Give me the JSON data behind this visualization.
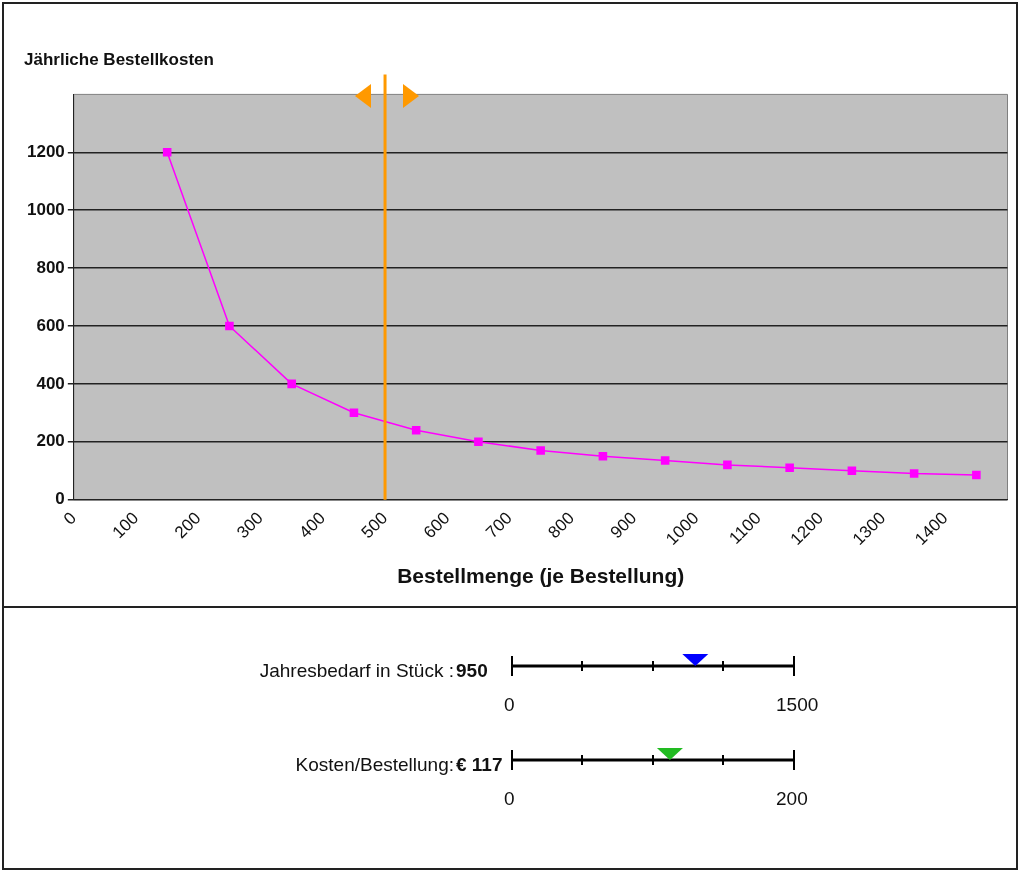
{
  "chart_data": {
    "type": "line",
    "title": "Jährliche Bestellkosten",
    "xlabel": "Bestellmenge (je Bestellung)",
    "x": [
      150,
      250,
      350,
      450,
      550,
      650,
      750,
      850,
      950,
      1050,
      1150,
      1250,
      1350,
      1450
    ],
    "series": [
      {
        "color": "#ff00ff",
        "values": [
          1200,
          600,
          400,
          300,
          240,
          200,
          170,
          150,
          135,
          120,
          110,
          100,
          90,
          85
        ]
      }
    ],
    "xlim": [
      0,
      1500
    ],
    "xticks": [
      0,
      100,
      200,
      300,
      400,
      500,
      600,
      700,
      800,
      900,
      1000,
      1100,
      1200,
      1300,
      1400
    ],
    "ylim": [
      0,
      1400
    ],
    "yticks": [
      0,
      200,
      400,
      600,
      800,
      1000,
      1200
    ],
    "grid": "y",
    "marker": "square",
    "line_style": "solid",
    "legend": false,
    "ref_lines": [
      {
        "axis": "x",
        "value": 500,
        "color": "#ff9900"
      }
    ],
    "annotations": [
      "Jahresbedarf in Stück :",
      "950",
      "0",
      "1500",
      "Kosten/Bestellung:",
      "€ 117",
      "0",
      "200"
    ]
  }
}
